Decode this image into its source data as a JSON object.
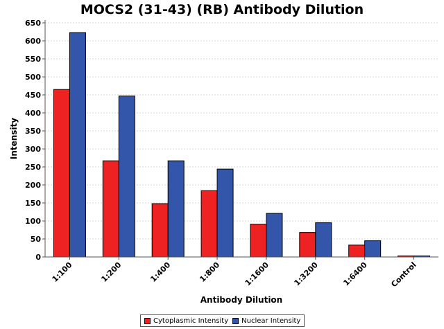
{
  "chart_data": {
    "type": "bar",
    "title": "MOCS2 (31-43) (RB) Antibody Dilution",
    "xlabel": "Antibody Dilution",
    "ylabel": "Intensity",
    "categories": [
      "1:100",
      "1:200",
      "1:400",
      "1:800",
      "1:1600",
      "1:3200",
      "1:6400",
      "Control"
    ],
    "series": [
      {
        "name": "Cytoplasmic Intensity",
        "color": "#ee2222",
        "values": [
          465,
          267,
          148,
          184,
          91,
          68,
          33,
          3
        ]
      },
      {
        "name": "Nuclear Intensity",
        "color": "#3355aa",
        "values": [
          623,
          447,
          267,
          244,
          121,
          95,
          45,
          3
        ]
      }
    ],
    "ylim": [
      0,
      650
    ],
    "yticks": [
      0,
      50,
      100,
      150,
      200,
      250,
      300,
      350,
      400,
      450,
      500,
      550,
      600,
      650
    ],
    "grid": true,
    "legend_position": "bottom"
  }
}
